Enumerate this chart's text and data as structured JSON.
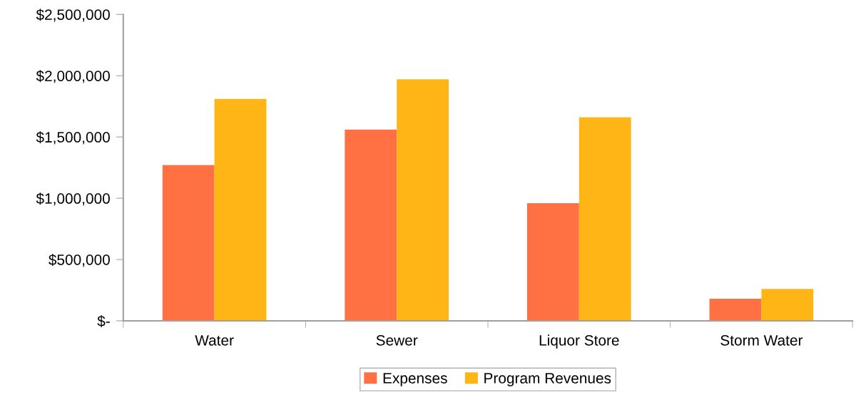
{
  "chart_data": {
    "type": "bar",
    "categories": [
      "Water",
      "Sewer",
      "Liquor Store",
      "Storm Water"
    ],
    "series": [
      {
        "name": "Expenses",
        "color": "#ff7043",
        "values": [
          1270000,
          1560000,
          960000,
          180000
        ]
      },
      {
        "name": "Program Revenues",
        "color": "#ffb515",
        "values": [
          1810000,
          1970000,
          1660000,
          260000
        ]
      }
    ],
    "ylim": [
      0,
      2500000
    ],
    "yticks": [
      {
        "value": 0,
        "label": "$-"
      },
      {
        "value": 500000,
        "label": "$500,000"
      },
      {
        "value": 1000000,
        "label": "$1,000,000"
      },
      {
        "value": 1500000,
        "label": "$1,500,000"
      },
      {
        "value": 2000000,
        "label": "$2,000,000"
      },
      {
        "value": 2500000,
        "label": "$2,500,000"
      }
    ],
    "grid": false,
    "legend": "bottom"
  }
}
